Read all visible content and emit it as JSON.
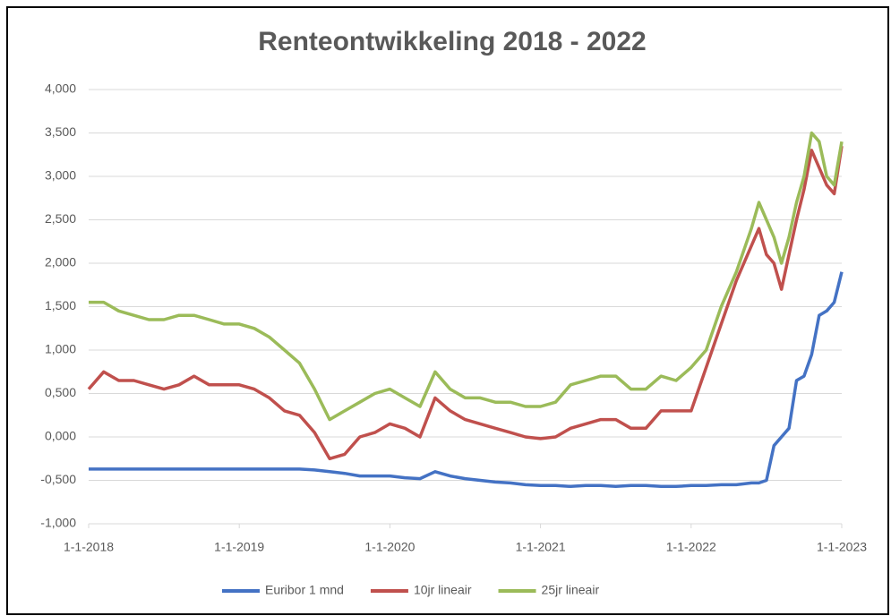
{
  "chart_data": {
    "type": "line",
    "title": "Renteontwikkeling 2018 - 2022",
    "x": [
      2018.0,
      2018.1,
      2018.2,
      2018.3,
      2018.4,
      2018.5,
      2018.6,
      2018.7,
      2018.8,
      2018.9,
      2019.0,
      2019.1,
      2019.2,
      2019.3,
      2019.4,
      2019.5,
      2019.6,
      2019.7,
      2019.8,
      2019.9,
      2020.0,
      2020.1,
      2020.2,
      2020.3,
      2020.4,
      2020.5,
      2020.6,
      2020.7,
      2020.8,
      2020.9,
      2021.0,
      2021.1,
      2021.2,
      2021.3,
      2021.4,
      2021.5,
      2021.6,
      2021.7,
      2021.8,
      2021.9,
      2022.0,
      2022.1,
      2022.2,
      2022.3,
      2022.4,
      2022.45,
      2022.5,
      2022.55,
      2022.6,
      2022.65,
      2022.7,
      2022.75,
      2022.8,
      2022.85,
      2022.9,
      2022.95,
      2023.0
    ],
    "series": [
      {
        "name": "Euribor 1 mnd",
        "color": "#4472c4",
        "values": [
          -0.37,
          -0.37,
          -0.37,
          -0.37,
          -0.37,
          -0.37,
          -0.37,
          -0.37,
          -0.37,
          -0.37,
          -0.37,
          -0.37,
          -0.37,
          -0.37,
          -0.37,
          -0.38,
          -0.4,
          -0.42,
          -0.45,
          -0.45,
          -0.45,
          -0.47,
          -0.48,
          -0.4,
          -0.45,
          -0.48,
          -0.5,
          -0.52,
          -0.53,
          -0.55,
          -0.56,
          -0.56,
          -0.57,
          -0.56,
          -0.56,
          -0.57,
          -0.56,
          -0.56,
          -0.57,
          -0.57,
          -0.56,
          -0.56,
          -0.55,
          -0.55,
          -0.53,
          -0.53,
          -0.5,
          -0.1,
          0.0,
          0.1,
          0.65,
          0.7,
          0.95,
          1.4,
          1.45,
          1.55,
          1.9
        ]
      },
      {
        "name": "10jr lineair",
        "color": "#c0504d",
        "values": [
          0.55,
          0.75,
          0.65,
          0.65,
          0.6,
          0.55,
          0.6,
          0.7,
          0.6,
          0.6,
          0.6,
          0.55,
          0.45,
          0.3,
          0.25,
          0.05,
          -0.25,
          -0.2,
          0.0,
          0.05,
          0.15,
          0.1,
          0.0,
          0.45,
          0.3,
          0.2,
          0.15,
          0.1,
          0.05,
          0.0,
          -0.02,
          0.0,
          0.1,
          0.15,
          0.2,
          0.2,
          0.1,
          0.1,
          0.3,
          0.3,
          0.3,
          0.8,
          1.3,
          1.8,
          2.2,
          2.4,
          2.1,
          2.0,
          1.7,
          2.1,
          2.5,
          2.85,
          3.3,
          3.1,
          2.9,
          2.8,
          3.35
        ]
      },
      {
        "name": "25jr lineair",
        "color": "#9bbb59",
        "values": [
          1.55,
          1.55,
          1.45,
          1.4,
          1.35,
          1.35,
          1.4,
          1.4,
          1.35,
          1.3,
          1.3,
          1.25,
          1.15,
          1.0,
          0.85,
          0.55,
          0.2,
          0.3,
          0.4,
          0.5,
          0.55,
          0.45,
          0.35,
          0.75,
          0.55,
          0.45,
          0.45,
          0.4,
          0.4,
          0.35,
          0.35,
          0.4,
          0.6,
          0.65,
          0.7,
          0.7,
          0.55,
          0.55,
          0.7,
          0.65,
          0.8,
          1.0,
          1.5,
          1.9,
          2.4,
          2.7,
          2.5,
          2.3,
          2.0,
          2.3,
          2.7,
          3.0,
          3.5,
          3.4,
          3.0,
          2.9,
          3.4
        ]
      }
    ],
    "xlim": [
      2018,
      2023
    ],
    "xticks": [
      {
        "value": 2018,
        "label": "1-1-2018"
      },
      {
        "value": 2019,
        "label": "1-1-2019"
      },
      {
        "value": 2020,
        "label": "1-1-2020"
      },
      {
        "value": 2021,
        "label": "1-1-2021"
      },
      {
        "value": 2022,
        "label": "1-1-2022"
      },
      {
        "value": 2023,
        "label": "1-1-2023"
      }
    ],
    "ylim": [
      -1,
      4
    ],
    "yticks": [
      {
        "value": -1,
        "label": "-1,000"
      },
      {
        "value": -0.5,
        "label": "-0,500"
      },
      {
        "value": 0,
        "label": "0,000"
      },
      {
        "value": 0.5,
        "label": "0,500"
      },
      {
        "value": 1,
        "label": "1,000"
      },
      {
        "value": 1.5,
        "label": "1,500"
      },
      {
        "value": 2,
        "label": "2,000"
      },
      {
        "value": 2.5,
        "label": "2,500"
      },
      {
        "value": 3,
        "label": "3,000"
      },
      {
        "value": 3.5,
        "label": "3,500"
      },
      {
        "value": 4,
        "label": "4,000"
      }
    ],
    "grid": true,
    "legend": "bottom"
  }
}
